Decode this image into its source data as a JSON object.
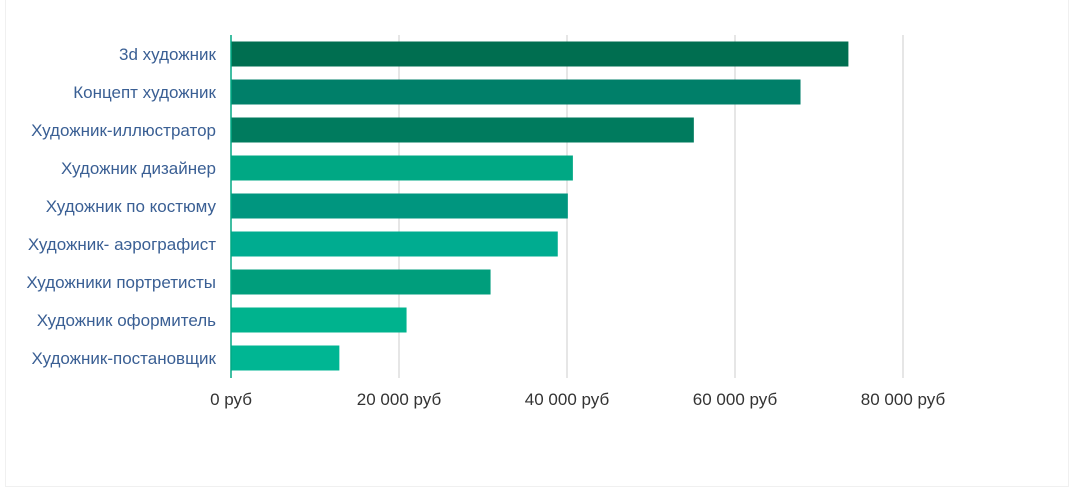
{
  "chart_data": {
    "type": "bar",
    "orientation": "horizontal",
    "title": "",
    "xlabel": "",
    "ylabel": "",
    "categories": [
      "3d художник",
      "Концепт художник",
      "Художник-иллюстратор",
      "Художник дизайнер",
      "Художник по костюму",
      "Художник- аэрографист",
      "Художники портретисты",
      "Художник оформитель",
      "Художник-постановщик"
    ],
    "values": [
      73500,
      67800,
      55100,
      40700,
      40100,
      38900,
      30900,
      20900,
      12900
    ],
    "bar_colors": [
      "#006e50",
      "#007f69",
      "#007b5e",
      "#00a884",
      "#00967f",
      "#00ac90",
      "#009e7c",
      "#00b38e",
      "#00b693"
    ],
    "xlim": [
      0,
      100000
    ],
    "x_ticks": [
      0,
      20000,
      40000,
      60000,
      80000
    ],
    "x_tick_labels": [
      "0 руб",
      "20 000 руб",
      "40 000 руб",
      "60 000 руб",
      "80 000 руб"
    ],
    "grid": true,
    "legend": "none"
  },
  "colors": {
    "category_label": "#3a5f94",
    "tick_label": "#333333",
    "gridline": "#cccccc",
    "axis": "#00a884"
  }
}
